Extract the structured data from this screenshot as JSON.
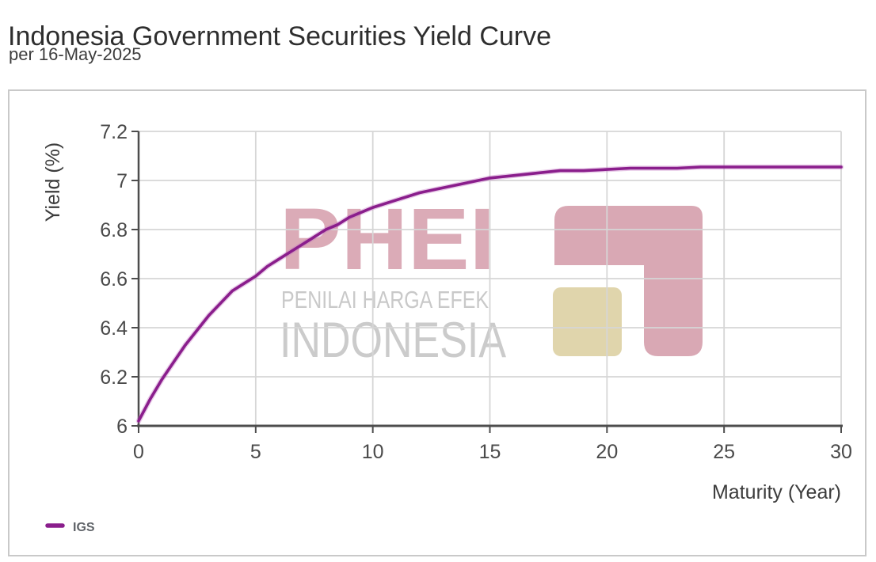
{
  "header": {
    "title": "Indonesia Government Securities Yield Curve",
    "subtitle": "per 16-May-2025"
  },
  "watermark": {
    "brand": "PHEI",
    "line1": "PENILAI HARGA EFEK",
    "line2": "INDONESIA",
    "brand_color": "#DBABB7",
    "text_color": "#C9C9C9",
    "logo_pink": "#D9A8B4",
    "logo_tan": "#E0D5AC"
  },
  "colors": {
    "series": "#8A1E8C",
    "series_halo": "#C06EC0",
    "axis": "#4d4d4d",
    "grid": "#d6d6d6",
    "panel_border": "#c9c9c9",
    "tick_text": "#4a4a4a"
  },
  "chart_data": {
    "type": "line",
    "title": "Indonesia Government Securities Yield Curve",
    "subtitle": "per 16-May-2025",
    "xlabel": "Maturity (Year)",
    "ylabel": "Yield (%)",
    "xlim": [
      0,
      30
    ],
    "ylim": [
      6.0,
      7.2
    ],
    "grid": true,
    "legend_position": "bottom-left",
    "xticks": {
      "values": [
        0,
        5,
        10,
        15,
        20,
        25,
        30
      ],
      "labels": [
        "0",
        "5",
        "10",
        "15",
        "20",
        "25",
        "30"
      ]
    },
    "yticks": {
      "values": [
        6.0,
        6.2,
        6.4,
        6.6,
        6.8,
        7.0,
        7.2
      ],
      "labels": [
        "6",
        "6.2",
        "6.4",
        "6.6",
        "6.8",
        "7",
        "7.2"
      ]
    },
    "series": [
      {
        "name": "IGS",
        "color": "#8A1E8C",
        "x": [
          0,
          0.5,
          1,
          1.5,
          2,
          2.5,
          3,
          3.5,
          4,
          4.5,
          5,
          5.5,
          6,
          6.5,
          7,
          7.5,
          8,
          8.5,
          9,
          9.5,
          10,
          11,
          12,
          13,
          14,
          15,
          16,
          17,
          18,
          19,
          20,
          21,
          22,
          23,
          24,
          25,
          26,
          27,
          28,
          29,
          30
        ],
        "y": [
          6.02,
          6.11,
          6.19,
          6.26,
          6.33,
          6.39,
          6.45,
          6.5,
          6.55,
          6.58,
          6.61,
          6.65,
          6.68,
          6.71,
          6.74,
          6.77,
          6.8,
          6.82,
          6.85,
          6.87,
          6.89,
          6.92,
          6.95,
          6.97,
          6.99,
          7.01,
          7.02,
          7.03,
          7.04,
          7.04,
          7.045,
          7.05,
          7.05,
          7.05,
          7.055,
          7.055,
          7.055,
          7.055,
          7.055,
          7.055,
          7.055
        ]
      }
    ]
  }
}
